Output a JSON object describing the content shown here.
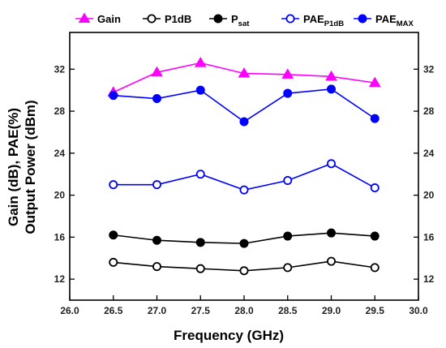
{
  "chart_data": {
    "type": "line",
    "xlabel": "Frequency (GHz)",
    "ylabel": [
      "Gain (dB), PAE(%)",
      "Output Power (dBm)"
    ],
    "xlim": [
      26.0,
      30.0
    ],
    "ylim": [
      10.0,
      35.5
    ],
    "x_ticks": [
      "26.0",
      "26.5",
      "27.0",
      "27.5",
      "28.0",
      "28.5",
      "29.0",
      "29.5",
      "30.0"
    ],
    "y_ticks": [
      "12",
      "16",
      "20",
      "24",
      "28",
      "32"
    ],
    "y_ticks_right": [
      "12",
      "16",
      "20",
      "24",
      "28",
      "32"
    ],
    "grid": false,
    "legend_position": "top",
    "x": [
      26.5,
      27.0,
      27.5,
      28.0,
      28.5,
      29.0,
      29.5
    ],
    "series": [
      {
        "name": "Gain",
        "name_sub": "",
        "color": "#ff00ff",
        "marker": "triangle-filled",
        "values": [
          29.8,
          31.7,
          32.6,
          31.6,
          31.5,
          31.3,
          30.7
        ]
      },
      {
        "name": "P1dB",
        "name_sub": "",
        "color": "#000000",
        "marker": "circle-open",
        "values": [
          13.6,
          13.2,
          13.0,
          12.8,
          13.1,
          13.7,
          13.1
        ]
      },
      {
        "name": "P",
        "name_sub": "sat",
        "color": "#000000",
        "marker": "circle-filled",
        "values": [
          16.2,
          15.7,
          15.5,
          15.4,
          16.1,
          16.4,
          16.1
        ]
      },
      {
        "name": "PAE",
        "name_sub": "P1dB",
        "color": "#0000ff",
        "marker": "circle-open",
        "values": [
          21.0,
          21.0,
          22.0,
          20.5,
          21.4,
          23.0,
          20.7
        ]
      },
      {
        "name": "PAE",
        "name_sub": "MAX",
        "color": "#0000ff",
        "marker": "circle-filled",
        "values": [
          29.5,
          29.2,
          30.0,
          27.0,
          29.7,
          30.1,
          27.3
        ]
      }
    ]
  }
}
